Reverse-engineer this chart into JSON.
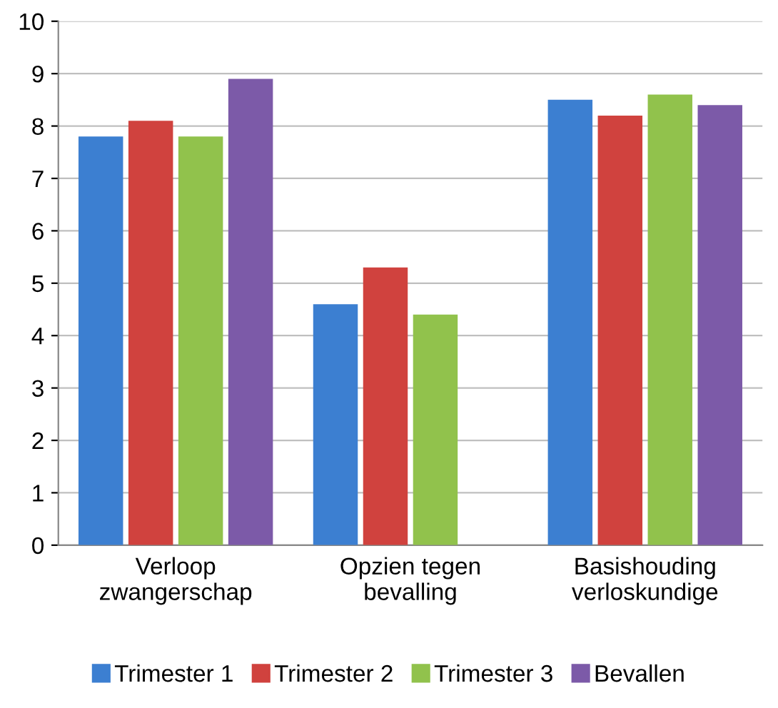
{
  "chart_data": {
    "type": "bar",
    "categories": [
      "Verloop\nzwangerschap",
      "Opzien tegen\nbevalling",
      "Basishouding\nverloskundige"
    ],
    "series": [
      {
        "name": "Trimester 1",
        "color": "#3c7fd1",
        "values": [
          7.8,
          4.6,
          8.5
        ]
      },
      {
        "name": "Trimester 2",
        "color": "#d0423e",
        "values": [
          8.1,
          5.3,
          8.2
        ]
      },
      {
        "name": "Trimester 3",
        "color": "#91c24c",
        "values": [
          7.8,
          4.4,
          8.6
        ]
      },
      {
        "name": "Bevallen",
        "color": "#7c5aa8",
        "values": [
          8.9,
          null,
          8.4
        ]
      }
    ],
    "ylim": [
      0,
      10
    ],
    "yticks": [
      0,
      1,
      2,
      3,
      4,
      5,
      6,
      7,
      8,
      9,
      10
    ],
    "grid": "y",
    "legend": "bottom"
  }
}
